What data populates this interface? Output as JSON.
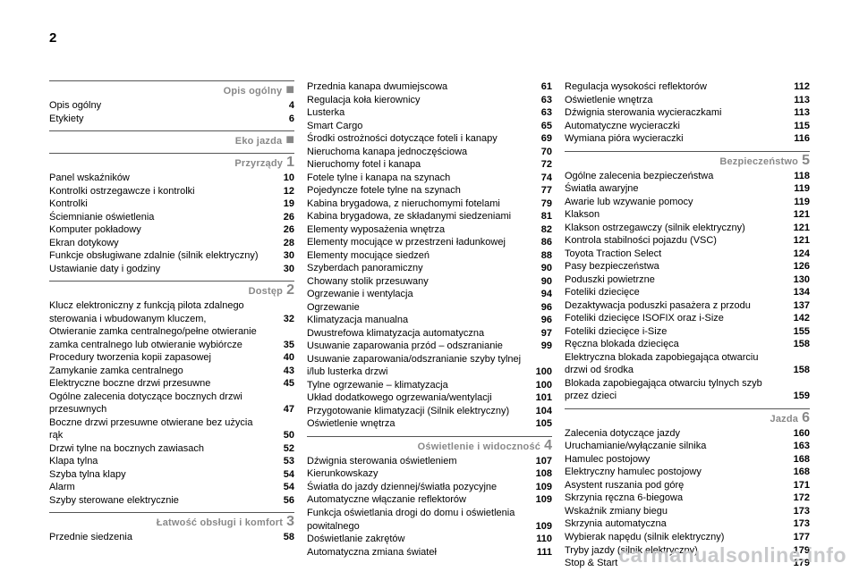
{
  "page_number": "2",
  "watermark": "carmanualsonline.info",
  "columns": [
    {
      "sections": [
        {
          "title": "Opis ogólny",
          "mark": "■",
          "entries": [
            {
              "label": "Opis ogólny",
              "page": "4"
            },
            {
              "label": "Etykiety",
              "page": "6"
            }
          ]
        },
        {
          "title": "Eko jazda",
          "mark": "■",
          "entries": []
        },
        {
          "title": "Przyrządy",
          "mark": "1",
          "entries": [
            {
              "label": "Panel wskaźników",
              "page": "10"
            },
            {
              "label": "Kontrolki ostrzegawcze i kontrolki",
              "page": "12"
            },
            {
              "label": "Kontrolki",
              "page": "19"
            },
            {
              "label": "Ściemnianie oświetlenia",
              "page": "26"
            },
            {
              "label": "Komputer pokładowy",
              "page": "26"
            },
            {
              "label": "Ekran dotykowy",
              "page": "28"
            },
            {
              "label": "Funkcje obsługiwane zdalnie (silnik elektryczny)",
              "page": "30"
            },
            {
              "label": "Ustawianie daty i godziny",
              "page": "30"
            }
          ]
        },
        {
          "title": "Dostęp",
          "mark": "2",
          "entries": [
            {
              "label": "Klucz elektroniczny z funkcją pilota zdalnego sterowania i wbudowanym kluczem,",
              "page": "32"
            },
            {
              "label": "Otwieranie zamka centralnego/pełne otwieranie zamka centralnego lub otwieranie wybiórcze",
              "page": "35"
            },
            {
              "label": "Procedury tworzenia kopii zapasowej",
              "page": "40"
            },
            {
              "label": "Zamykanie zamka centralnego",
              "page": "43"
            },
            {
              "label": "Elektryczne boczne drzwi przesuwne",
              "page": "45"
            },
            {
              "label": "Ogólne zalecenia dotyczące bocznych drzwi przesuwnych",
              "page": "47"
            },
            {
              "label": "Boczne drzwi przesuwne otwierane bez użycia rąk",
              "page": "50"
            },
            {
              "label": "Drzwi tylne na bocznych zawiasach",
              "page": "52"
            },
            {
              "label": "Klapa tylna",
              "page": "53"
            },
            {
              "label": "Szyba tylna klapy",
              "page": "54"
            },
            {
              "label": "Alarm",
              "page": "54"
            },
            {
              "label": "Szyby sterowane elektrycznie",
              "page": "56"
            }
          ]
        },
        {
          "title": "Łatwość obsługi i komfort",
          "mark": "3",
          "entries": [
            {
              "label": "Przednie siedzenia",
              "page": "58"
            }
          ]
        }
      ]
    },
    {
      "sections": [
        {
          "title": "",
          "mark": "",
          "entries": [
            {
              "label": "Przednia kanapa dwumiejscowa",
              "page": "61"
            },
            {
              "label": "Regulacja koła kierownicy",
              "page": "63"
            },
            {
              "label": "Lusterka",
              "page": "63"
            },
            {
              "label": "Smart Cargo",
              "page": "65"
            },
            {
              "label": "Środki ostrożności dotyczące foteli i kanapy",
              "page": "69"
            },
            {
              "label": "Nieruchoma kanapa jednoczęściowa",
              "page": "70"
            },
            {
              "label": "Nieruchomy fotel i kanapa",
              "page": "72"
            },
            {
              "label": "Fotele tylne i kanapa na szynach",
              "page": "74"
            },
            {
              "label": "Pojedyncze fotele tylne na szynach",
              "page": "77"
            },
            {
              "label": "Kabina brygadowa, z nieruchomymi fotelami",
              "page": "79"
            },
            {
              "label": "Kabina brygadowa, ze składanymi siedzeniami",
              "page": "81"
            },
            {
              "label": "Elementy wyposażenia wnętrza",
              "page": "82"
            },
            {
              "label": "Elementy mocujące w przestrzeni ładunkowej",
              "page": "86"
            },
            {
              "label": "Elementy mocujące siedzeń",
              "page": "88"
            },
            {
              "label": "Szyberdach panoramiczny",
              "page": "90"
            },
            {
              "label": "Chowany stolik przesuwany",
              "page": "90"
            },
            {
              "label": "Ogrzewanie i wentylacja",
              "page": "94"
            },
            {
              "label": "Ogrzewanie",
              "page": "96"
            },
            {
              "label": "Klimatyzacja manualna",
              "page": "96"
            },
            {
              "label": "Dwustrefowa klimatyzacja automatyczna",
              "page": "97"
            },
            {
              "label": "Usuwanie zaparowania przód – odszranianie",
              "page": "99"
            },
            {
              "label": "Usuwanie zaparowania/odszranianie szyby tylnej i/lub lusterka drzwi",
              "page": "100"
            },
            {
              "label": "Tylne ogrzewanie – klimatyzacja",
              "page": "100"
            },
            {
              "label": "Układ dodatkowego ogrzewania/wentylacji",
              "page": "101"
            },
            {
              "label": "Przygotowanie klimatyzacji (Silnik elektryczny)",
              "page": "104"
            },
            {
              "label": "Oświetlenie wnętrza",
              "page": "105"
            }
          ]
        },
        {
          "title": "Oświetlenie i widoczność",
          "mark": "4",
          "entries": [
            {
              "label": "Dźwignia sterowania oświetleniem",
              "page": "107"
            },
            {
              "label": "Kierunkowskazy",
              "page": "108"
            },
            {
              "label": "Światła do jazdy dziennej/światła pozycyjne",
              "page": "109"
            },
            {
              "label": "Automatyczne włączanie reflektorów",
              "page": "109"
            },
            {
              "label": "Funkcja oświetlania drogi do domu i oświetlenia powitalnego",
              "page": "109"
            },
            {
              "label": "Doświetlanie zakrętów",
              "page": "110"
            },
            {
              "label": "Automatyczna zmiana świateł",
              "page": "111"
            }
          ]
        }
      ]
    },
    {
      "sections": [
        {
          "title": "",
          "mark": "",
          "entries": [
            {
              "label": "Regulacja wysokości reflektorów",
              "page": "112"
            },
            {
              "label": "Oświetlenie wnętrza",
              "page": "113"
            },
            {
              "label": "Dźwignia sterowania wycieraczkami",
              "page": "113"
            },
            {
              "label": "Automatyczne wycieraczki",
              "page": "115"
            },
            {
              "label": "Wymiana pióra wycieraczki",
              "page": "116"
            }
          ]
        },
        {
          "title": "Bezpieczeństwo",
          "mark": "5",
          "entries": [
            {
              "label": "Ogólne zalecenia bezpieczeństwa",
              "page": "118"
            },
            {
              "label": "Światła awaryjne",
              "page": "119"
            },
            {
              "label": "Awarie lub wzywanie pomocy",
              "page": "119"
            },
            {
              "label": "Klakson",
              "page": "121"
            },
            {
              "label": "Klakson ostrzegawczy (silnik elektryczny)",
              "page": "121"
            },
            {
              "label": "Kontrola stabilności pojazdu (VSC)",
              "page": "121"
            },
            {
              "label": "Toyota Traction Select",
              "page": "124"
            },
            {
              "label": "Pasy bezpieczeństwa",
              "page": "126"
            },
            {
              "label": "Poduszki powietrzne",
              "page": "130"
            },
            {
              "label": "Foteliki dziecięce",
              "page": "134"
            },
            {
              "label": "Dezaktywacja poduszki pasażera z przodu",
              "page": "137"
            },
            {
              "label": "Foteliki dziecięce ISOFIX oraz i-Size",
              "page": "142"
            },
            {
              "label": "Foteliki dziecięce i-Size",
              "page": "155"
            },
            {
              "label": "Ręczna blokada dziecięca",
              "page": "158"
            },
            {
              "label": "Elektryczna blokada zapobiegająca otwarciu drzwi od środka",
              "page": "158"
            },
            {
              "label": "Blokada zapobiegająca otwarciu tylnych szyb przez dzieci",
              "page": "159"
            }
          ]
        },
        {
          "title": "Jazda",
          "mark": "6",
          "entries": [
            {
              "label": "Zalecenia dotyczące jazdy",
              "page": "160"
            },
            {
              "label": "Uruchamianie/wyłączanie silnika",
              "page": "163"
            },
            {
              "label": "Hamulec postojowy",
              "page": "168"
            },
            {
              "label": "Elektryczny hamulec postojowy",
              "page": "168"
            },
            {
              "label": "Asystent ruszania pod górę",
              "page": "171"
            },
            {
              "label": "Skrzynia ręczna 6-biegowa",
              "page": "172"
            },
            {
              "label": "Wskaźnik zmiany biegu",
              "page": "173"
            },
            {
              "label": "Skrzynia automatyczna",
              "page": "173"
            },
            {
              "label": "Wybierak napędu (silnik elektryczny)",
              "page": "177"
            },
            {
              "label": "Tryby jazdy (silnik elektryczny)",
              "page": "179"
            },
            {
              "label": "Stop & Start",
              "page": "179"
            }
          ]
        }
      ]
    }
  ]
}
